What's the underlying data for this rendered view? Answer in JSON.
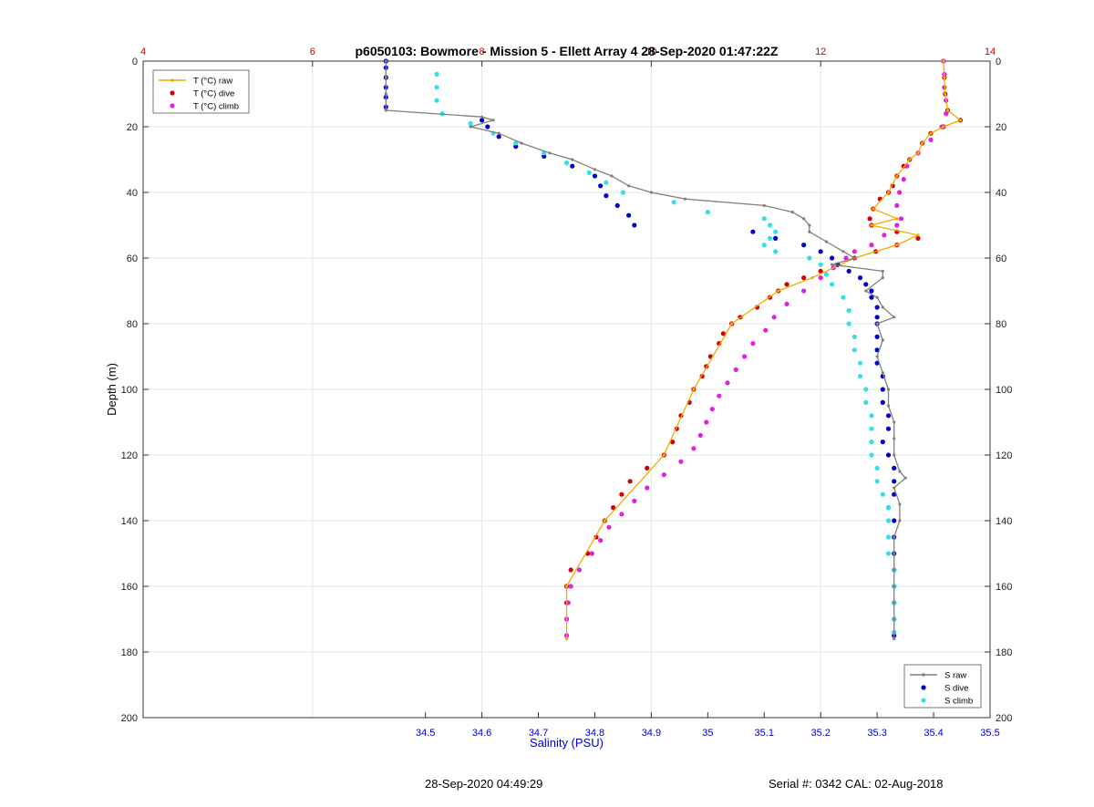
{
  "footer": {
    "timestamp": "28-Sep-2020 04:49:29",
    "serial": "Serial #: 0342  CAL: 02-Aug-2018"
  },
  "chart_data": {
    "type": "scatter",
    "title": "p6050103: Bowmore - Mission 5 - Ellett Array 4 28-Sep-2020 01:47:22Z",
    "ylabel": "Depth (m)",
    "xlabel": "Salinity (PSU)",
    "x2label": "",
    "ylim": [
      0,
      200
    ],
    "y_reversed": true,
    "xlim_salinity": [
      34.0,
      35.5
    ],
    "xlim_temperature": [
      4,
      14
    ],
    "y_ticks": [
      0,
      20,
      40,
      60,
      80,
      100,
      120,
      140,
      160,
      180,
      200
    ],
    "salinity_ticks": [
      34.5,
      34.6,
      34.7,
      34.8,
      34.9,
      35,
      35.1,
      35.2,
      35.3,
      35.4,
      35.5
    ],
    "temperature_ticks": [
      4,
      6,
      8,
      10,
      12,
      14
    ],
    "grid": true,
    "colors": {
      "t_raw": "#f5a800",
      "t_dive": "#d40000",
      "t_climb": "#e020e0",
      "s_raw": "#808080",
      "s_dive": "#0000c8",
      "s_climb": "#33e0e8",
      "temp_axis": "#cc0000",
      "sal_axis": "#0000cc"
    },
    "legend_temperature": {
      "placement": "top-left",
      "entries": [
        {
          "key": "t_raw",
          "label": "T (°C) raw"
        },
        {
          "key": "t_dive",
          "label": "T (°C) dive"
        },
        {
          "key": "t_climb",
          "label": "T (°C) climb"
        }
      ]
    },
    "legend_salinity": {
      "placement": "bottom-right",
      "entries": [
        {
          "key": "s_raw",
          "label": "S raw"
        },
        {
          "key": "s_dive",
          "label": "S dive"
        },
        {
          "key": "s_climb",
          "label": "S climb"
        }
      ]
    },
    "series": [
      {
        "key": "t_dive",
        "axis": "temperature",
        "depth": [
          0,
          5,
          10,
          15,
          18,
          20,
          22,
          25,
          28,
          30,
          32,
          35,
          38,
          40,
          42,
          45,
          48,
          50,
          52,
          54,
          56,
          58,
          60,
          62,
          64,
          66,
          68,
          70,
          72,
          75,
          78,
          80,
          83,
          86,
          90,
          93,
          96,
          100,
          104,
          108,
          112,
          116,
          120,
          124,
          128,
          132,
          136,
          140,
          145,
          150,
          155,
          160,
          165,
          170,
          175
        ],
        "values": [
          13.45,
          13.46,
          13.47,
          13.5,
          13.65,
          13.45,
          13.3,
          13.2,
          13.15,
          13.05,
          12.98,
          12.9,
          12.85,
          12.8,
          12.7,
          12.62,
          12.58,
          12.6,
          12.9,
          13.15,
          12.9,
          12.65,
          12.4,
          12.2,
          12.0,
          11.8,
          11.6,
          11.5,
          11.4,
          11.25,
          11.05,
          10.95,
          10.85,
          10.8,
          10.7,
          10.65,
          10.6,
          10.5,
          10.45,
          10.35,
          10.3,
          10.25,
          10.15,
          9.95,
          9.75,
          9.65,
          9.55,
          9.45,
          9.35,
          9.25,
          9.05,
          9.0,
          9.0,
          9.0,
          9.0
        ]
      },
      {
        "key": "t_climb",
        "axis": "temperature",
        "depth": [
          0,
          4,
          8,
          12,
          16,
          20,
          24,
          28,
          32,
          36,
          40,
          44,
          48,
          50,
          53,
          56,
          58,
          60,
          63,
          66,
          70,
          74,
          78,
          82,
          86,
          90,
          94,
          98,
          102,
          106,
          110,
          114,
          118,
          122,
          126,
          130,
          134,
          138,
          142,
          146,
          150,
          155,
          160,
          165,
          170,
          175
        ],
        "values": [
          13.45,
          13.46,
          13.46,
          13.48,
          13.48,
          13.43,
          13.3,
          13.15,
          13.02,
          12.98,
          12.93,
          12.9,
          12.95,
          12.9,
          12.75,
          12.6,
          12.4,
          12.3,
          12.15,
          12.0,
          11.8,
          11.6,
          11.45,
          11.35,
          11.2,
          11.1,
          11.0,
          10.9,
          10.8,
          10.72,
          10.65,
          10.58,
          10.5,
          10.35,
          10.15,
          9.95,
          9.8,
          9.65,
          9.5,
          9.4,
          9.3,
          9.15,
          9.05,
          9.02,
          9.0,
          9.0
        ]
      },
      {
        "key": "t_raw",
        "axis": "temperature",
        "depth": [
          0,
          5,
          10,
          15,
          18,
          20,
          22,
          25,
          28,
          30,
          35,
          40,
          45,
          48,
          50,
          53,
          56,
          60,
          66,
          70,
          80,
          100,
          120,
          140,
          160,
          176
        ],
        "values": [
          13.45,
          13.46,
          13.47,
          13.5,
          13.65,
          13.45,
          13.3,
          13.2,
          13.15,
          13.05,
          12.9,
          12.8,
          12.62,
          12.9,
          12.6,
          13.15,
          12.9,
          12.4,
          11.9,
          11.5,
          10.95,
          10.5,
          10.15,
          9.45,
          9.0,
          9.0
        ]
      },
      {
        "key": "s_dive",
        "axis": "salinity",
        "depth": [
          0,
          2,
          5,
          8,
          11,
          14,
          18,
          20,
          23,
          26,
          29,
          32,
          35,
          38,
          41,
          44,
          47,
          50,
          52,
          54,
          56,
          58,
          60,
          62,
          64,
          66,
          68,
          70,
          72,
          75,
          78,
          80,
          84,
          88,
          92,
          96,
          100,
          104,
          108,
          112,
          116,
          120,
          124,
          128,
          132,
          136,
          140,
          145,
          150,
          155,
          160,
          165,
          170,
          175
        ],
        "values": [
          34.43,
          34.43,
          34.43,
          34.43,
          34.43,
          34.43,
          34.6,
          34.61,
          34.63,
          34.66,
          34.71,
          34.76,
          34.8,
          34.81,
          34.82,
          34.84,
          34.86,
          34.87,
          35.08,
          35.12,
          35.17,
          35.2,
          35.22,
          35.23,
          35.25,
          35.27,
          35.28,
          35.29,
          35.29,
          35.3,
          35.3,
          35.3,
          35.3,
          35.3,
          35.3,
          35.31,
          35.31,
          35.31,
          35.32,
          35.32,
          35.31,
          35.32,
          35.33,
          35.33,
          35.33,
          35.32,
          35.33,
          35.33,
          35.33,
          35.33,
          35.33,
          35.33,
          35.33,
          35.33
        ]
      },
      {
        "key": "s_climb",
        "axis": "salinity",
        "depth": [
          4,
          8,
          12,
          16,
          19,
          22,
          25,
          28,
          31,
          34,
          37,
          40,
          43,
          46,
          48,
          50,
          52,
          54,
          56,
          58,
          60,
          62,
          65,
          68,
          72,
          76,
          80,
          84,
          88,
          92,
          96,
          100,
          104,
          108,
          112,
          116,
          120,
          124,
          128,
          132,
          136,
          140,
          145,
          150,
          155,
          160,
          165,
          170,
          174
        ],
        "values": [
          34.52,
          34.52,
          34.52,
          34.53,
          34.58,
          34.62,
          34.66,
          34.71,
          34.75,
          34.79,
          34.82,
          34.85,
          34.94,
          35.0,
          35.1,
          35.11,
          35.12,
          35.11,
          35.1,
          35.12,
          35.18,
          35.2,
          35.21,
          35.22,
          35.24,
          35.25,
          35.25,
          35.26,
          35.26,
          35.27,
          35.27,
          35.28,
          35.28,
          35.29,
          35.29,
          35.29,
          35.29,
          35.3,
          35.3,
          35.31,
          35.32,
          35.32,
          35.32,
          35.32,
          35.33,
          35.33,
          35.33,
          35.33,
          35.33
        ]
      },
      {
        "key": "s_raw",
        "axis": "salinity",
        "depth": [
          0,
          5,
          10,
          15,
          17,
          18,
          20,
          22,
          25,
          28,
          30,
          33,
          35,
          38,
          40,
          42,
          44,
          46,
          48,
          50,
          52,
          55,
          58,
          60,
          62,
          64,
          66,
          70,
          72,
          75,
          78,
          80,
          85,
          90,
          95,
          100,
          105,
          110,
          115,
          120,
          125,
          127,
          130,
          135,
          140,
          145,
          150,
          155,
          160,
          165,
          170,
          176
        ],
        "values": [
          34.43,
          34.43,
          34.43,
          34.43,
          34.6,
          34.62,
          34.58,
          34.63,
          34.67,
          34.72,
          34.76,
          34.8,
          34.83,
          34.86,
          34.9,
          34.96,
          35.1,
          35.15,
          35.17,
          35.18,
          35.18,
          35.21,
          35.24,
          35.26,
          35.22,
          35.31,
          35.31,
          35.28,
          35.3,
          35.31,
          35.33,
          35.3,
          35.31,
          35.3,
          35.31,
          35.32,
          35.32,
          35.33,
          35.33,
          35.33,
          35.34,
          35.35,
          35.33,
          35.34,
          35.34,
          35.33,
          35.33,
          35.33,
          35.33,
          35.33,
          35.33,
          35.33
        ]
      }
    ]
  }
}
